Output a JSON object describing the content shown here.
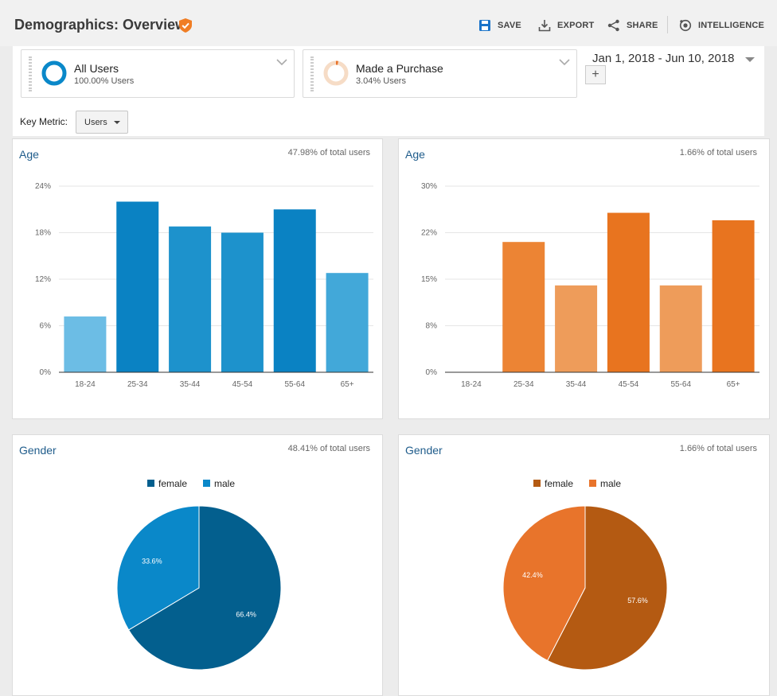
{
  "header": {
    "title": "Demographics: Overview",
    "actions": [
      {
        "label": "SAVE",
        "icon": "save-icon"
      },
      {
        "label": "EXPORT",
        "icon": "export-icon"
      },
      {
        "label": "SHARE",
        "icon": "share-icon"
      },
      {
        "label": "INTELLIGENCE",
        "icon": "intelligence-icon"
      }
    ]
  },
  "segments": [
    {
      "name": "All Users",
      "sub": "100.00% Users",
      "color": "#0a88c9",
      "fraction": 1.0
    },
    {
      "name": "Made a Purchase",
      "sub": "3.04% Users",
      "color": "#e8742b",
      "fraction": 0.0304
    }
  ],
  "date_range": "Jan 1, 2018 - Jun 10, 2018",
  "add_segment": "+",
  "key_metric": {
    "label": "Key Metric:",
    "value": "Users"
  },
  "panels": {
    "age_all": {
      "title": "Age",
      "pct": "47.98% of total users"
    },
    "age_purchase": {
      "title": "Age",
      "pct": "1.66% of total users"
    },
    "gender_all": {
      "title": "Gender",
      "pct": "48.41% of total users"
    },
    "gender_purchase": {
      "title": "Gender",
      "pct": "1.66% of total users"
    }
  },
  "colors": {
    "blue_dark": "#035f8e",
    "blue_mid": "#0a88c9",
    "orange_dark": "#b45a12",
    "orange_mid": "#e8742b",
    "brand_shield": "#f07d24",
    "save_icon": "#1a73c9"
  },
  "chart_data": [
    {
      "type": "bar",
      "id": "age_all",
      "categories": [
        "18-24",
        "25-34",
        "35-44",
        "45-54",
        "55-64",
        "65+"
      ],
      "values": [
        7.2,
        22,
        18.8,
        18,
        21,
        12.8
      ],
      "yticks": [
        "0%",
        "6%",
        "12%",
        "18%",
        "24%"
      ],
      "ylim": [
        0,
        24
      ],
      "colors": [
        "#6cbde5",
        "#0a82c3",
        "#1d92cc",
        "#1d92cc",
        "#0a82c3",
        "#42a8d9"
      ]
    },
    {
      "type": "bar",
      "id": "age_purchase",
      "categories": [
        "18-24",
        "25-34",
        "35-44",
        "45-54",
        "55-64",
        "65+"
      ],
      "values": [
        0,
        21,
        14,
        25.7,
        14,
        24.5
      ],
      "yticks": [
        "0%",
        "8%",
        "15%",
        "22%",
        "30%"
      ],
      "ylim": [
        0,
        30
      ],
      "colors": [
        "#e8742b",
        "#ec8434",
        "#ee9c5a",
        "#e8741f",
        "#ee9c5a",
        "#e8741f"
      ]
    },
    {
      "type": "pie",
      "id": "gender_all",
      "legend": [
        "female",
        "male"
      ],
      "values": [
        66.4,
        33.6
      ],
      "labels": [
        "66.4%",
        "33.6%"
      ],
      "colors": [
        "#035f8e",
        "#0a88c9"
      ]
    },
    {
      "type": "pie",
      "id": "gender_purchase",
      "legend": [
        "female",
        "male"
      ],
      "values": [
        57.6,
        42.4
      ],
      "labels": [
        "57.6%",
        "42.4%"
      ],
      "colors": [
        "#b45a12",
        "#e8742b"
      ]
    }
  ]
}
